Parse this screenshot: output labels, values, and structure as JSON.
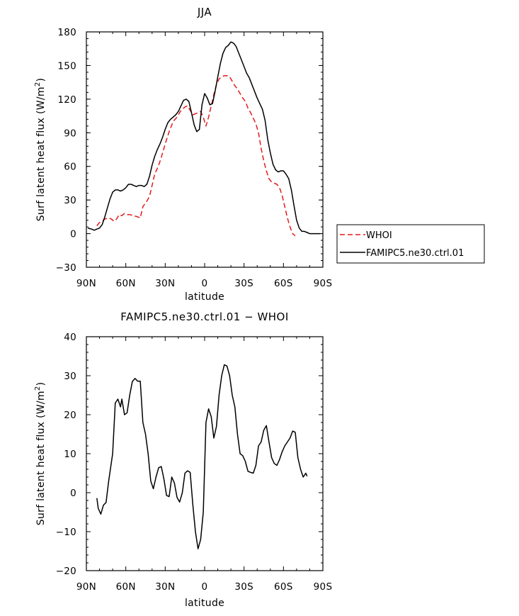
{
  "chart_data": [
    {
      "type": "line",
      "title": "JJA",
      "xlabel": "latitude",
      "ylabel": "Surf latent heat flux (W/m²)",
      "ylabel_parts": {
        "main": "Surf latent heat flux (W/m",
        "sup": "2",
        "close": ")"
      },
      "xlim": [
        90,
        -90
      ],
      "ylim": [
        -30,
        180
      ],
      "xticks": [
        90,
        60,
        30,
        0,
        -30,
        -60,
        -90
      ],
      "xtick_labels": [
        "90N",
        "60N",
        "30N",
        "0",
        "30S",
        "60S",
        "90S"
      ],
      "yticks": [
        -30,
        0,
        30,
        60,
        90,
        120,
        150,
        180
      ],
      "ytick_labels": [
        "−30",
        "0",
        "30",
        "60",
        "90",
        "120",
        "150",
        "180"
      ],
      "legend": {
        "position": "right",
        "entries": [
          "WHOI",
          "FAMIPC5.ne30.ctrl.01"
        ]
      },
      "series": [
        {
          "name": "WHOI",
          "color": "#e41a1c",
          "style": "dashed",
          "points": [
            [
              82,
              7
            ],
            [
              80,
              10
            ],
            [
              78,
              11
            ],
            [
              76,
              13
            ],
            [
              73,
              14
            ],
            [
              71,
              13
            ],
            [
              69,
              11
            ],
            [
              67,
              13
            ],
            [
              65,
              17
            ],
            [
              63,
              16
            ],
            [
              61,
              18
            ],
            [
              59,
              17
            ],
            [
              57,
              17
            ],
            [
              54,
              16
            ],
            [
              51,
              15
            ],
            [
              49,
              14
            ],
            [
              47,
              24
            ],
            [
              44,
              29
            ],
            [
              42,
              33
            ],
            [
              40,
              43
            ],
            [
              38,
              53
            ],
            [
              35,
              61
            ],
            [
              33,
              68
            ],
            [
              30,
              80
            ],
            [
              27,
              91
            ],
            [
              24,
              100
            ],
            [
              21,
              104
            ],
            [
              18,
              110
            ],
            [
              15,
              113
            ],
            [
              13,
              114
            ],
            [
              11,
              110
            ],
            [
              9,
              106
            ],
            [
              7,
              107
            ],
            [
              5,
              108
            ],
            [
              3,
              109
            ],
            [
              1,
              104
            ],
            [
              -1,
              96
            ],
            [
              -3,
              104
            ],
            [
              -5,
              114
            ],
            [
              -7,
              124
            ],
            [
              -9,
              133
            ],
            [
              -11,
              138
            ],
            [
              -13,
              140
            ],
            [
              -15,
              141
            ],
            [
              -17,
              141
            ],
            [
              -19,
              140
            ],
            [
              -21,
              136
            ],
            [
              -23,
              132
            ],
            [
              -25,
              129
            ],
            [
              -27,
              125
            ],
            [
              -29,
              121
            ],
            [
              -31,
              118
            ],
            [
              -33,
              112
            ],
            [
              -35,
              108
            ],
            [
              -37,
              103
            ],
            [
              -39,
              98
            ],
            [
              -41,
              90
            ],
            [
              -43,
              76
            ],
            [
              -45,
              65
            ],
            [
              -47,
              56
            ],
            [
              -49,
              49
            ],
            [
              -51,
              46
            ],
            [
              -53,
              45
            ],
            [
              -55,
              44
            ],
            [
              -57,
              41
            ],
            [
              -59,
              34
            ],
            [
              -61,
              24
            ],
            [
              -63,
              14
            ],
            [
              -65,
              6
            ],
            [
              -67,
              0
            ],
            [
              -69,
              -2
            ]
          ]
        },
        {
          "name": "FAMIPC5.ne30.ctrl.01",
          "color": "#000000",
          "style": "solid",
          "points": [
            [
              89,
              5
            ],
            [
              86,
              4
            ],
            [
              84,
              3
            ],
            [
              82,
              4
            ],
            [
              80,
              5
            ],
            [
              78,
              8
            ],
            [
              76,
              15
            ],
            [
              74,
              23
            ],
            [
              72,
              31
            ],
            [
              70,
              37
            ],
            [
              68,
              39
            ],
            [
              66,
              39
            ],
            [
              64,
              38
            ],
            [
              62,
              39
            ],
            [
              60,
              41
            ],
            [
              58,
              44
            ],
            [
              56,
              44
            ],
            [
              54,
              43
            ],
            [
              52,
              42
            ],
            [
              50,
              43
            ],
            [
              48,
              43
            ],
            [
              46,
              42
            ],
            [
              44,
              44
            ],
            [
              42,
              51
            ],
            [
              40,
              61
            ],
            [
              38,
              69
            ],
            [
              36,
              75
            ],
            [
              34,
              80
            ],
            [
              32,
              86
            ],
            [
              30,
              93
            ],
            [
              28,
              99
            ],
            [
              26,
              102
            ],
            [
              24,
              104
            ],
            [
              22,
              106
            ],
            [
              20,
              109
            ],
            [
              18,
              114
            ],
            [
              16,
              119
            ],
            [
              14,
              120
            ],
            [
              12,
              118
            ],
            [
              10,
              108
            ],
            [
              8,
              97
            ],
            [
              6,
              91
            ],
            [
              4,
              93
            ],
            [
              2,
              115
            ],
            [
              0,
              125
            ],
            [
              -2,
              121
            ],
            [
              -4,
              115
            ],
            [
              -6,
              116
            ],
            [
              -8,
              127
            ],
            [
              -10,
              140
            ],
            [
              -12,
              152
            ],
            [
              -14,
              161
            ],
            [
              -16,
              166
            ],
            [
              -18,
              168
            ],
            [
              -20,
              171
            ],
            [
              -22,
              170
            ],
            [
              -24,
              167
            ],
            [
              -26,
              161
            ],
            [
              -28,
              155
            ],
            [
              -30,
              149
            ],
            [
              -32,
              143
            ],
            [
              -34,
              139
            ],
            [
              -36,
              133
            ],
            [
              -38,
              127
            ],
            [
              -40,
              121
            ],
            [
              -42,
              116
            ],
            [
              -44,
              111
            ],
            [
              -46,
              101
            ],
            [
              -48,
              84
            ],
            [
              -50,
              72
            ],
            [
              -52,
              62
            ],
            [
              -54,
              57
            ],
            [
              -56,
              55
            ],
            [
              -58,
              56
            ],
            [
              -60,
              56
            ],
            [
              -62,
              53
            ],
            [
              -64,
              49
            ],
            [
              -66,
              39
            ],
            [
              -68,
              25
            ],
            [
              -70,
              12
            ],
            [
              -72,
              5
            ],
            [
              -74,
              2
            ],
            [
              -76,
              2
            ],
            [
              -78,
              1
            ],
            [
              -80,
              0
            ],
            [
              -82,
              0
            ],
            [
              -84,
              0
            ],
            [
              -86,
              0
            ],
            [
              -88,
              0
            ]
          ]
        }
      ]
    },
    {
      "type": "line",
      "title": "FAMIPC5.ne30.ctrl.01 − WHOI",
      "xlabel": "latitude",
      "ylabel": "Surf latent heat flux (W/m²)",
      "ylabel_parts": {
        "main": "Surf latent heat flux (W/m",
        "sup": "2",
        "close": ")"
      },
      "xlim": [
        90,
        -90
      ],
      "ylim": [
        -20,
        40
      ],
      "xticks": [
        90,
        60,
        30,
        0,
        -30,
        -60,
        -90
      ],
      "xtick_labels": [
        "90N",
        "60N",
        "30N",
        "0",
        "30S",
        "60S",
        "90S"
      ],
      "yticks": [
        -20,
        -10,
        0,
        10,
        20,
        30,
        40
      ],
      "ytick_labels": [
        "−20",
        "−10",
        "0",
        "10",
        "20",
        "30",
        "40"
      ],
      "series": [
        {
          "name": "FAMIPC5.ne30.ctrl.01 − WHOI",
          "color": "#000000",
          "style": "solid",
          "points": [
            [
              82,
              -1.4
            ],
            [
              81,
              -4
            ],
            [
              79,
              -5.5
            ],
            [
              77,
              -3.2
            ],
            [
              75,
              -2.5
            ],
            [
              73,
              3
            ],
            [
              70,
              10
            ],
            [
              68,
              23
            ],
            [
              66,
              24
            ],
            [
              64,
              22
            ],
            [
              63,
              24
            ],
            [
              61,
              20
            ],
            [
              59,
              20.5
            ],
            [
              57,
              25
            ],
            [
              55,
              28.5
            ],
            [
              53,
              29.3
            ],
            [
              51,
              28.6
            ],
            [
              49,
              28.6
            ],
            [
              47,
              18
            ],
            [
              45,
              15
            ],
            [
              43,
              10
            ],
            [
              41,
              3
            ],
            [
              39,
              1
            ],
            [
              37,
              4
            ],
            [
              35,
              6.4
            ],
            [
              33,
              6.7
            ],
            [
              31,
              3.5
            ],
            [
              29,
              -0.7
            ],
            [
              27,
              -1
            ],
            [
              25,
              4
            ],
            [
              23,
              2.5
            ],
            [
              21,
              -1.2
            ],
            [
              19,
              -2.4
            ],
            [
              17,
              0
            ],
            [
              15,
              5
            ],
            [
              13,
              5.6
            ],
            [
              11,
              5.2
            ],
            [
              9,
              -3
            ],
            [
              7,
              -10
            ],
            [
              5,
              -14.4
            ],
            [
              3,
              -12
            ],
            [
              1,
              -5
            ],
            [
              -1,
              18
            ],
            [
              -3,
              21.5
            ],
            [
              -5,
              19.5
            ],
            [
              -7,
              14
            ],
            [
              -9,
              17
            ],
            [
              -11,
              25
            ],
            [
              -13,
              30
            ],
            [
              -15,
              32.8
            ],
            [
              -17,
              32.5
            ],
            [
              -19,
              30
            ],
            [
              -21,
              25
            ],
            [
              -23,
              22
            ],
            [
              -25,
              15
            ],
            [
              -27,
              10
            ],
            [
              -29,
              9.5
            ],
            [
              -31,
              8
            ],
            [
              -33,
              5.5
            ],
            [
              -35,
              5.2
            ],
            [
              -37,
              5
            ],
            [
              -39,
              7
            ],
            [
              -41,
              12
            ],
            [
              -43,
              13
            ],
            [
              -45,
              16
            ],
            [
              -47,
              17.2
            ],
            [
              -49,
              13
            ],
            [
              -51,
              9
            ],
            [
              -53,
              7.5
            ],
            [
              -55,
              7
            ],
            [
              -57,
              8.5
            ],
            [
              -59,
              10.5
            ],
            [
              -61,
              12
            ],
            [
              -63,
              13
            ],
            [
              -65,
              14
            ],
            [
              -67,
              15.8
            ],
            [
              -69,
              15.5
            ],
            [
              -71,
              9
            ],
            [
              -73,
              6
            ],
            [
              -75,
              4
            ],
            [
              -77,
              5
            ],
            [
              -78,
              4.2
            ]
          ]
        }
      ]
    }
  ]
}
